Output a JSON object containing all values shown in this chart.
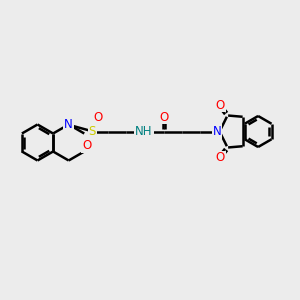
{
  "bg_color": "#ececec",
  "bond_color": "#000000",
  "n_color": "#0000ff",
  "o_color": "#ff0000",
  "s_color": "#cccc00",
  "nh_color": "#008080",
  "line_width": 1.8,
  "dbo": 0.055,
  "fontsize": 8.5,
  "fig_size": [
    3.0,
    3.0
  ],
  "dpi": 100,
  "xlim": [
    0,
    12
  ],
  "ylim": [
    0,
    10
  ]
}
